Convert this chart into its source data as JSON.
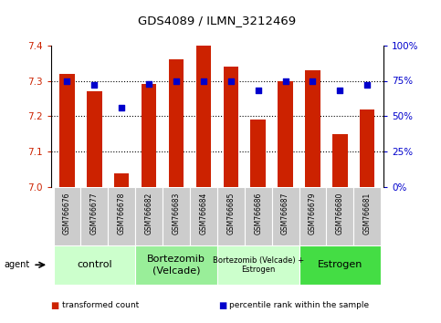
{
  "title": "GDS4089 / ILMN_3212469",
  "samples": [
    "GSM766676",
    "GSM766677",
    "GSM766678",
    "GSM766682",
    "GSM766683",
    "GSM766684",
    "GSM766685",
    "GSM766686",
    "GSM766687",
    "GSM766679",
    "GSM766680",
    "GSM766681"
  ],
  "red_values": [
    7.32,
    7.27,
    7.04,
    7.29,
    7.36,
    7.4,
    7.34,
    7.19,
    7.3,
    7.33,
    7.15,
    7.22
  ],
  "blue_values": [
    75,
    72,
    56,
    73,
    75,
    75,
    75,
    68,
    75,
    75,
    68,
    72
  ],
  "ylim_left": [
    7.0,
    7.4
  ],
  "ylim_right": [
    0,
    100
  ],
  "yticks_left": [
    7.0,
    7.1,
    7.2,
    7.3,
    7.4
  ],
  "yticks_right": [
    0,
    25,
    50,
    75,
    100
  ],
  "groups": [
    {
      "label": "control",
      "start": 0,
      "end": 3,
      "color": "#ccffcc",
      "fontsize": 8
    },
    {
      "label": "Bortezomib\n(Velcade)",
      "start": 3,
      "end": 6,
      "color": "#99ee99",
      "fontsize": 8
    },
    {
      "label": "Bortezomib (Velcade) +\nEstrogen",
      "start": 6,
      "end": 9,
      "color": "#ccffcc",
      "fontsize": 6
    },
    {
      "label": "Estrogen",
      "start": 9,
      "end": 12,
      "color": "#44dd44",
      "fontsize": 8
    }
  ],
  "bar_color": "#cc2200",
  "dot_color": "#0000cc",
  "left_axis_color": "#cc2200",
  "right_axis_color": "#0000cc",
  "legend_items": [
    {
      "label": "transformed count",
      "color": "#cc2200"
    },
    {
      "label": "percentile rank within the sample",
      "color": "#0000cc"
    }
  ],
  "sample_box_color": "#cccccc",
  "bar_width": 0.55
}
